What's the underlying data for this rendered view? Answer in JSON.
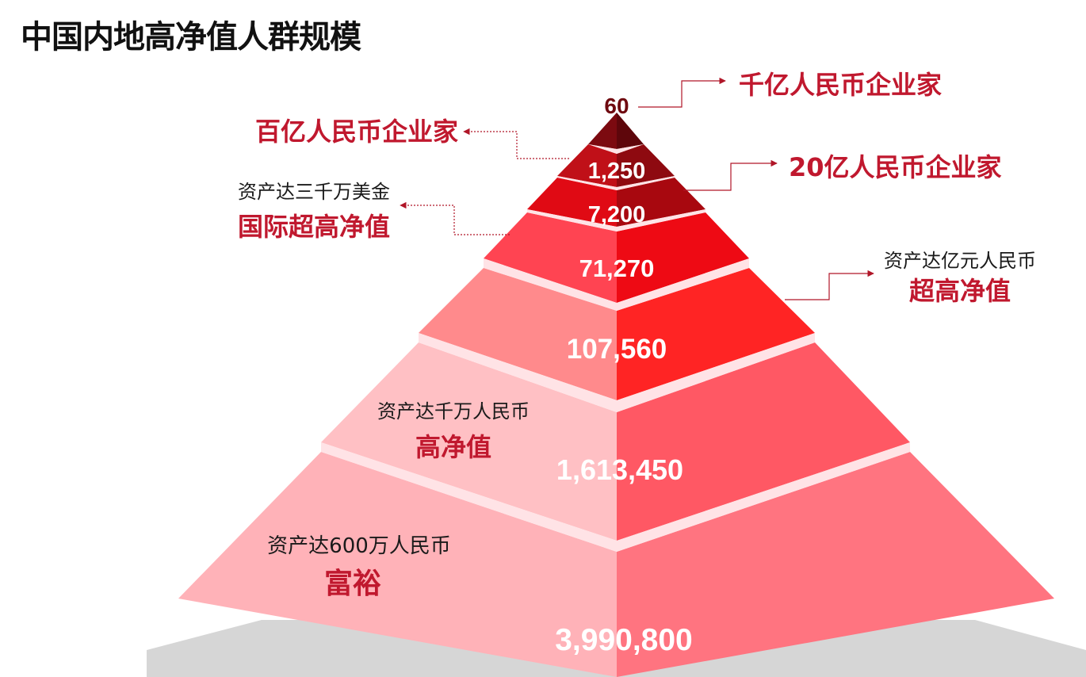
{
  "title": "中国内地高净值人群规模",
  "colors": {
    "label_red": "#c0182e",
    "leader_red": "#b01628",
    "shadow": "#d6d6d6",
    "gap": "#ffe3e6"
  },
  "tiers": [
    {
      "value": "60",
      "left_color": "#7c0a10",
      "right_color": "#5e060b",
      "label": "千亿人民币企业家",
      "sublabel": ""
    },
    {
      "value": "1,250",
      "left_color": "#c01018",
      "right_color": "#8e0a10",
      "label": "百亿人民币企业家",
      "sublabel": ""
    },
    {
      "value": "7,200",
      "left_color": "#e00a14",
      "right_color": "#a8080f",
      "label": "20亿人民币企业家",
      "sublabel": ""
    },
    {
      "value": "71,270",
      "left_color": "#ff4452",
      "right_color": "#ee0a14",
      "label": "国际超高净值",
      "sublabel": "资产达三千万美金"
    },
    {
      "value": "107,560",
      "left_color": "#ff8a8c",
      "right_color": "#ff2424",
      "label": "超高净值",
      "sublabel": "资产达亿元人民币"
    },
    {
      "value": "1,613,450",
      "left_color": "#ffc0c4",
      "right_color": "#ff5864",
      "label": "高净值",
      "sublabel": "资产达千万人民币"
    },
    {
      "value": "3,990,800",
      "left_color": "#ffb2b8",
      "right_color": "#ff7480",
      "label": "富裕",
      "sublabel": "资产达600万人民币"
    }
  ]
}
